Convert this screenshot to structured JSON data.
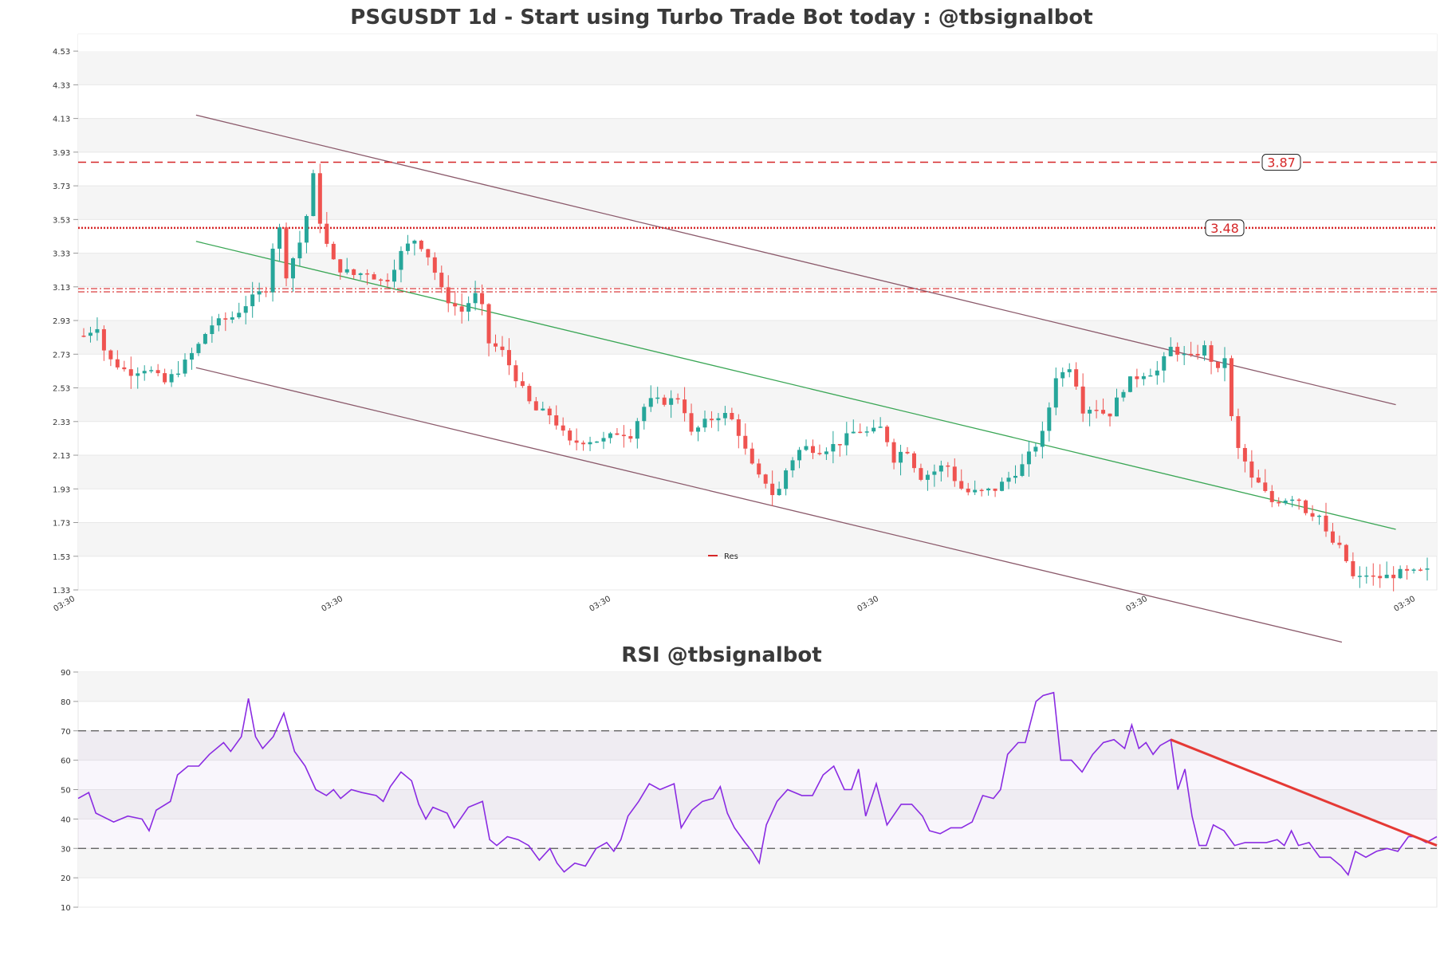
{
  "colors": {
    "bull": "#26a69a",
    "bear": "#ef5350",
    "level": "#d62728",
    "channel": "#8b5a6b",
    "midline": "#3aa655",
    "rsi": "#8a2be2",
    "rsi_trend": "#e53935",
    "band_light": "#f5f5f5"
  },
  "chart_data": [
    {
      "type": "candlestick",
      "title": "PSGUSDT 1d - Start using Turbo Trade Bot today : @tbsignalbot",
      "ylim": [
        1.33,
        4.63
      ],
      "yticks": [
        "1.33",
        "1.53",
        "1.73",
        "1.93",
        "2.13",
        "2.33",
        "2.53",
        "2.73",
        "2.93",
        "3.13",
        "3.33",
        "3.53",
        "3.73",
        "3.93",
        "4.13",
        "4.33",
        "4.53"
      ],
      "xticks": [
        "03:30",
        "03:30",
        "03:30",
        "03:30",
        "03:30",
        "03:30"
      ],
      "legend": {
        "label": "Res",
        "position": "bottom-center"
      },
      "levels": [
        {
          "value": 3.87,
          "label": "3.87",
          "style": "dashed"
        },
        {
          "value": 3.48,
          "label": "3.48",
          "style": "dotted"
        },
        {
          "value": 3.11,
          "label": "",
          "style": "dashdot"
        }
      ],
      "candle_count": 200,
      "close_path": [
        [
          0,
          2.84
        ],
        [
          3,
          2.9
        ],
        [
          5,
          2.71
        ],
        [
          10,
          2.62
        ],
        [
          14,
          2.65
        ],
        [
          18,
          2.56
        ],
        [
          22,
          2.66
        ],
        [
          26,
          2.8
        ],
        [
          28,
          2.9
        ],
        [
          33,
          2.95
        ],
        [
          37,
          3.05
        ],
        [
          41,
          3.13
        ],
        [
          43,
          3.58
        ],
        [
          45,
          3.2
        ],
        [
          47,
          3.33
        ],
        [
          49,
          3.45
        ],
        [
          51,
          3.8
        ],
        [
          53,
          3.45
        ],
        [
          56,
          3.25
        ],
        [
          60,
          3.2
        ],
        [
          63,
          3.22
        ],
        [
          67,
          3.15
        ],
        [
          71,
          3.35
        ],
        [
          74,
          3.42
        ],
        [
          77,
          3.3
        ],
        [
          80,
          3.08
        ],
        [
          84,
          2.98
        ],
        [
          86,
          3.05
        ],
        [
          88,
          3.1
        ],
        [
          90,
          2.8
        ],
        [
          93,
          2.75
        ],
        [
          96,
          2.6
        ],
        [
          100,
          2.4
        ],
        [
          104,
          2.37
        ],
        [
          108,
          2.2
        ],
        [
          112,
          2.22
        ],
        [
          116,
          2.22
        ],
        [
          119,
          2.27
        ],
        [
          122,
          2.25
        ],
        [
          124,
          2.4
        ],
        [
          126,
          2.45
        ],
        [
          130,
          2.45
        ],
        [
          133,
          2.48
        ],
        [
          135,
          2.25
        ],
        [
          138,
          2.32
        ],
        [
          142,
          2.38
        ],
        [
          144,
          2.35
        ],
        [
          146,
          2.25
        ],
        [
          148,
          2.1
        ],
        [
          150,
          2.0
        ],
        [
          152,
          1.97
        ],
        [
          154,
          1.86
        ],
        [
          156,
          2.03
        ],
        [
          158,
          2.12
        ],
        [
          160,
          2.18
        ],
        [
          164,
          2.16
        ],
        [
          168,
          2.2
        ],
        [
          172,
          2.28
        ],
        [
          175,
          2.26
        ],
        [
          178,
          2.3
        ],
        [
          180,
          2.1
        ],
        [
          183,
          2.18
        ],
        [
          186,
          2.0
        ],
        [
          189,
          2.03
        ],
        [
          192,
          2.08
        ],
        [
          194,
          1.98
        ],
        [
          196,
          1.91
        ],
        [
          200,
          1.91
        ],
        [
          203,
          1.93
        ],
        [
          206,
          2.0
        ],
        [
          209,
          2.07
        ],
        [
          212,
          2.2
        ],
        [
          214,
          2.28
        ],
        [
          216,
          2.6
        ],
        [
          218,
          2.62
        ],
        [
          220,
          2.68
        ],
        [
          222,
          2.4
        ],
        [
          225,
          2.42
        ],
        [
          228,
          2.36
        ],
        [
          232,
          2.56
        ],
        [
          236,
          2.62
        ],
        [
          239,
          2.63
        ],
        [
          242,
          2.77
        ],
        [
          246,
          2.7
        ],
        [
          250,
          2.78
        ],
        [
          252,
          2.6
        ],
        [
          254,
          2.72
        ],
        [
          256,
          2.2
        ],
        [
          258,
          2.12
        ],
        [
          260,
          1.98
        ],
        [
          262,
          1.95
        ],
        [
          264,
          1.85
        ],
        [
          267,
          1.87
        ],
        [
          270,
          1.89
        ],
        [
          272,
          1.8
        ],
        [
          275,
          1.77
        ],
        [
          277,
          1.62
        ],
        [
          279,
          1.6
        ],
        [
          281,
          1.5
        ],
        [
          283,
          1.37
        ],
        [
          285,
          1.43
        ],
        [
          287,
          1.4
        ],
        [
          290,
          1.41
        ],
        [
          293,
          1.43
        ],
        [
          296,
          1.43
        ],
        [
          299,
          1.44
        ]
      ]
    },
    {
      "type": "line",
      "title": "RSI @tbsignalbot",
      "ylim": [
        10,
        90
      ],
      "yticks": [
        "10",
        "20",
        "30",
        "40",
        "50",
        "60",
        "70",
        "80",
        "90"
      ],
      "levels": [
        70,
        30
      ],
      "points": [
        [
          0,
          47
        ],
        [
          3,
          49
        ],
        [
          5,
          42
        ],
        [
          10,
          39
        ],
        [
          14,
          41
        ],
        [
          18,
          40
        ],
        [
          20,
          36
        ],
        [
          22,
          43
        ],
        [
          26,
          46
        ],
        [
          28,
          55
        ],
        [
          31,
          58
        ],
        [
          34,
          58
        ],
        [
          37,
          62
        ],
        [
          41,
          66
        ],
        [
          43,
          63
        ],
        [
          46,
          68
        ],
        [
          48,
          81
        ],
        [
          50,
          68
        ],
        [
          52,
          64
        ],
        [
          55,
          68
        ],
        [
          58,
          76
        ],
        [
          61,
          63
        ],
        [
          64,
          58
        ],
        [
          67,
          50
        ],
        [
          70,
          48
        ],
        [
          72,
          50
        ],
        [
          74,
          47
        ],
        [
          77,
          50
        ],
        [
          80,
          49
        ],
        [
          84,
          48
        ],
        [
          86,
          46
        ],
        [
          88,
          51
        ],
        [
          91,
          56
        ],
        [
          94,
          53
        ],
        [
          96,
          45
        ],
        [
          98,
          40
        ],
        [
          100,
          44
        ],
        [
          104,
          42
        ],
        [
          106,
          37
        ],
        [
          110,
          44
        ],
        [
          114,
          46
        ],
        [
          116,
          33
        ],
        [
          118,
          31
        ],
        [
          121,
          34
        ],
        [
          124,
          33
        ],
        [
          127,
          31
        ],
        [
          130,
          26
        ],
        [
          133,
          30
        ],
        [
          135,
          25
        ],
        [
          137,
          22
        ],
        [
          140,
          25
        ],
        [
          143,
          24
        ],
        [
          146,
          30
        ],
        [
          149,
          32
        ],
        [
          151,
          29
        ],
        [
          153,
          33
        ],
        [
          155,
          41
        ],
        [
          158,
          46
        ],
        [
          161,
          52
        ],
        [
          164,
          50
        ],
        [
          168,
          52
        ],
        [
          170,
          37
        ],
        [
          173,
          43
        ],
        [
          176,
          46
        ],
        [
          179,
          47
        ],
        [
          181,
          51
        ],
        [
          183,
          42
        ],
        [
          185,
          37
        ],
        [
          188,
          32
        ],
        [
          190,
          29
        ],
        [
          192,
          25
        ],
        [
          194,
          38
        ],
        [
          197,
          46
        ],
        [
          200,
          50
        ],
        [
          204,
          48
        ],
        [
          207,
          48
        ],
        [
          210,
          55
        ],
        [
          213,
          58
        ],
        [
          216,
          50
        ],
        [
          218,
          50
        ],
        [
          220,
          57
        ],
        [
          222,
          41
        ],
        [
          225,
          52
        ],
        [
          228,
          38
        ],
        [
          232,
          45
        ],
        [
          235,
          45
        ],
        [
          238,
          41
        ],
        [
          240,
          36
        ],
        [
          243,
          35
        ],
        [
          246,
          37
        ],
        [
          249,
          37
        ],
        [
          252,
          39
        ],
        [
          255,
          48
        ],
        [
          258,
          47
        ],
        [
          260,
          50
        ],
        [
          262,
          62
        ],
        [
          265,
          66
        ],
        [
          267,
          66
        ],
        [
          270,
          80
        ],
        [
          272,
          82
        ],
        [
          275,
          83
        ],
        [
          277,
          60
        ],
        [
          280,
          60
        ],
        [
          283,
          56
        ],
        [
          286,
          62
        ],
        [
          289,
          66
        ],
        [
          292,
          67
        ],
        [
          295,
          64
        ],
        [
          297,
          72
        ],
        [
          299,
          64
        ],
        [
          301,
          66
        ],
        [
          303,
          62
        ],
        [
          305,
          65
        ],
        [
          308,
          67
        ],
        [
          310,
          50
        ],
        [
          312,
          57
        ],
        [
          314,
          41
        ],
        [
          316,
          31
        ],
        [
          318,
          31
        ],
        [
          320,
          38
        ],
        [
          323,
          36
        ],
        [
          326,
          31
        ],
        [
          329,
          32
        ],
        [
          332,
          32
        ],
        [
          335,
          32
        ],
        [
          338,
          33
        ],
        [
          340,
          31
        ],
        [
          342,
          36
        ],
        [
          344,
          31
        ],
        [
          347,
          32
        ],
        [
          350,
          27
        ],
        [
          353,
          27
        ],
        [
          356,
          24
        ],
        [
          358,
          21
        ],
        [
          360,
          29
        ],
        [
          363,
          27
        ],
        [
          366,
          29
        ],
        [
          369,
          30
        ],
        [
          372,
          29
        ],
        [
          375,
          34
        ],
        [
          377,
          34
        ],
        [
          380,
          32
        ],
        [
          383,
          34
        ]
      ],
      "trendline": [
        [
          308,
          67
        ],
        [
          383,
          31
        ]
      ]
    }
  ]
}
